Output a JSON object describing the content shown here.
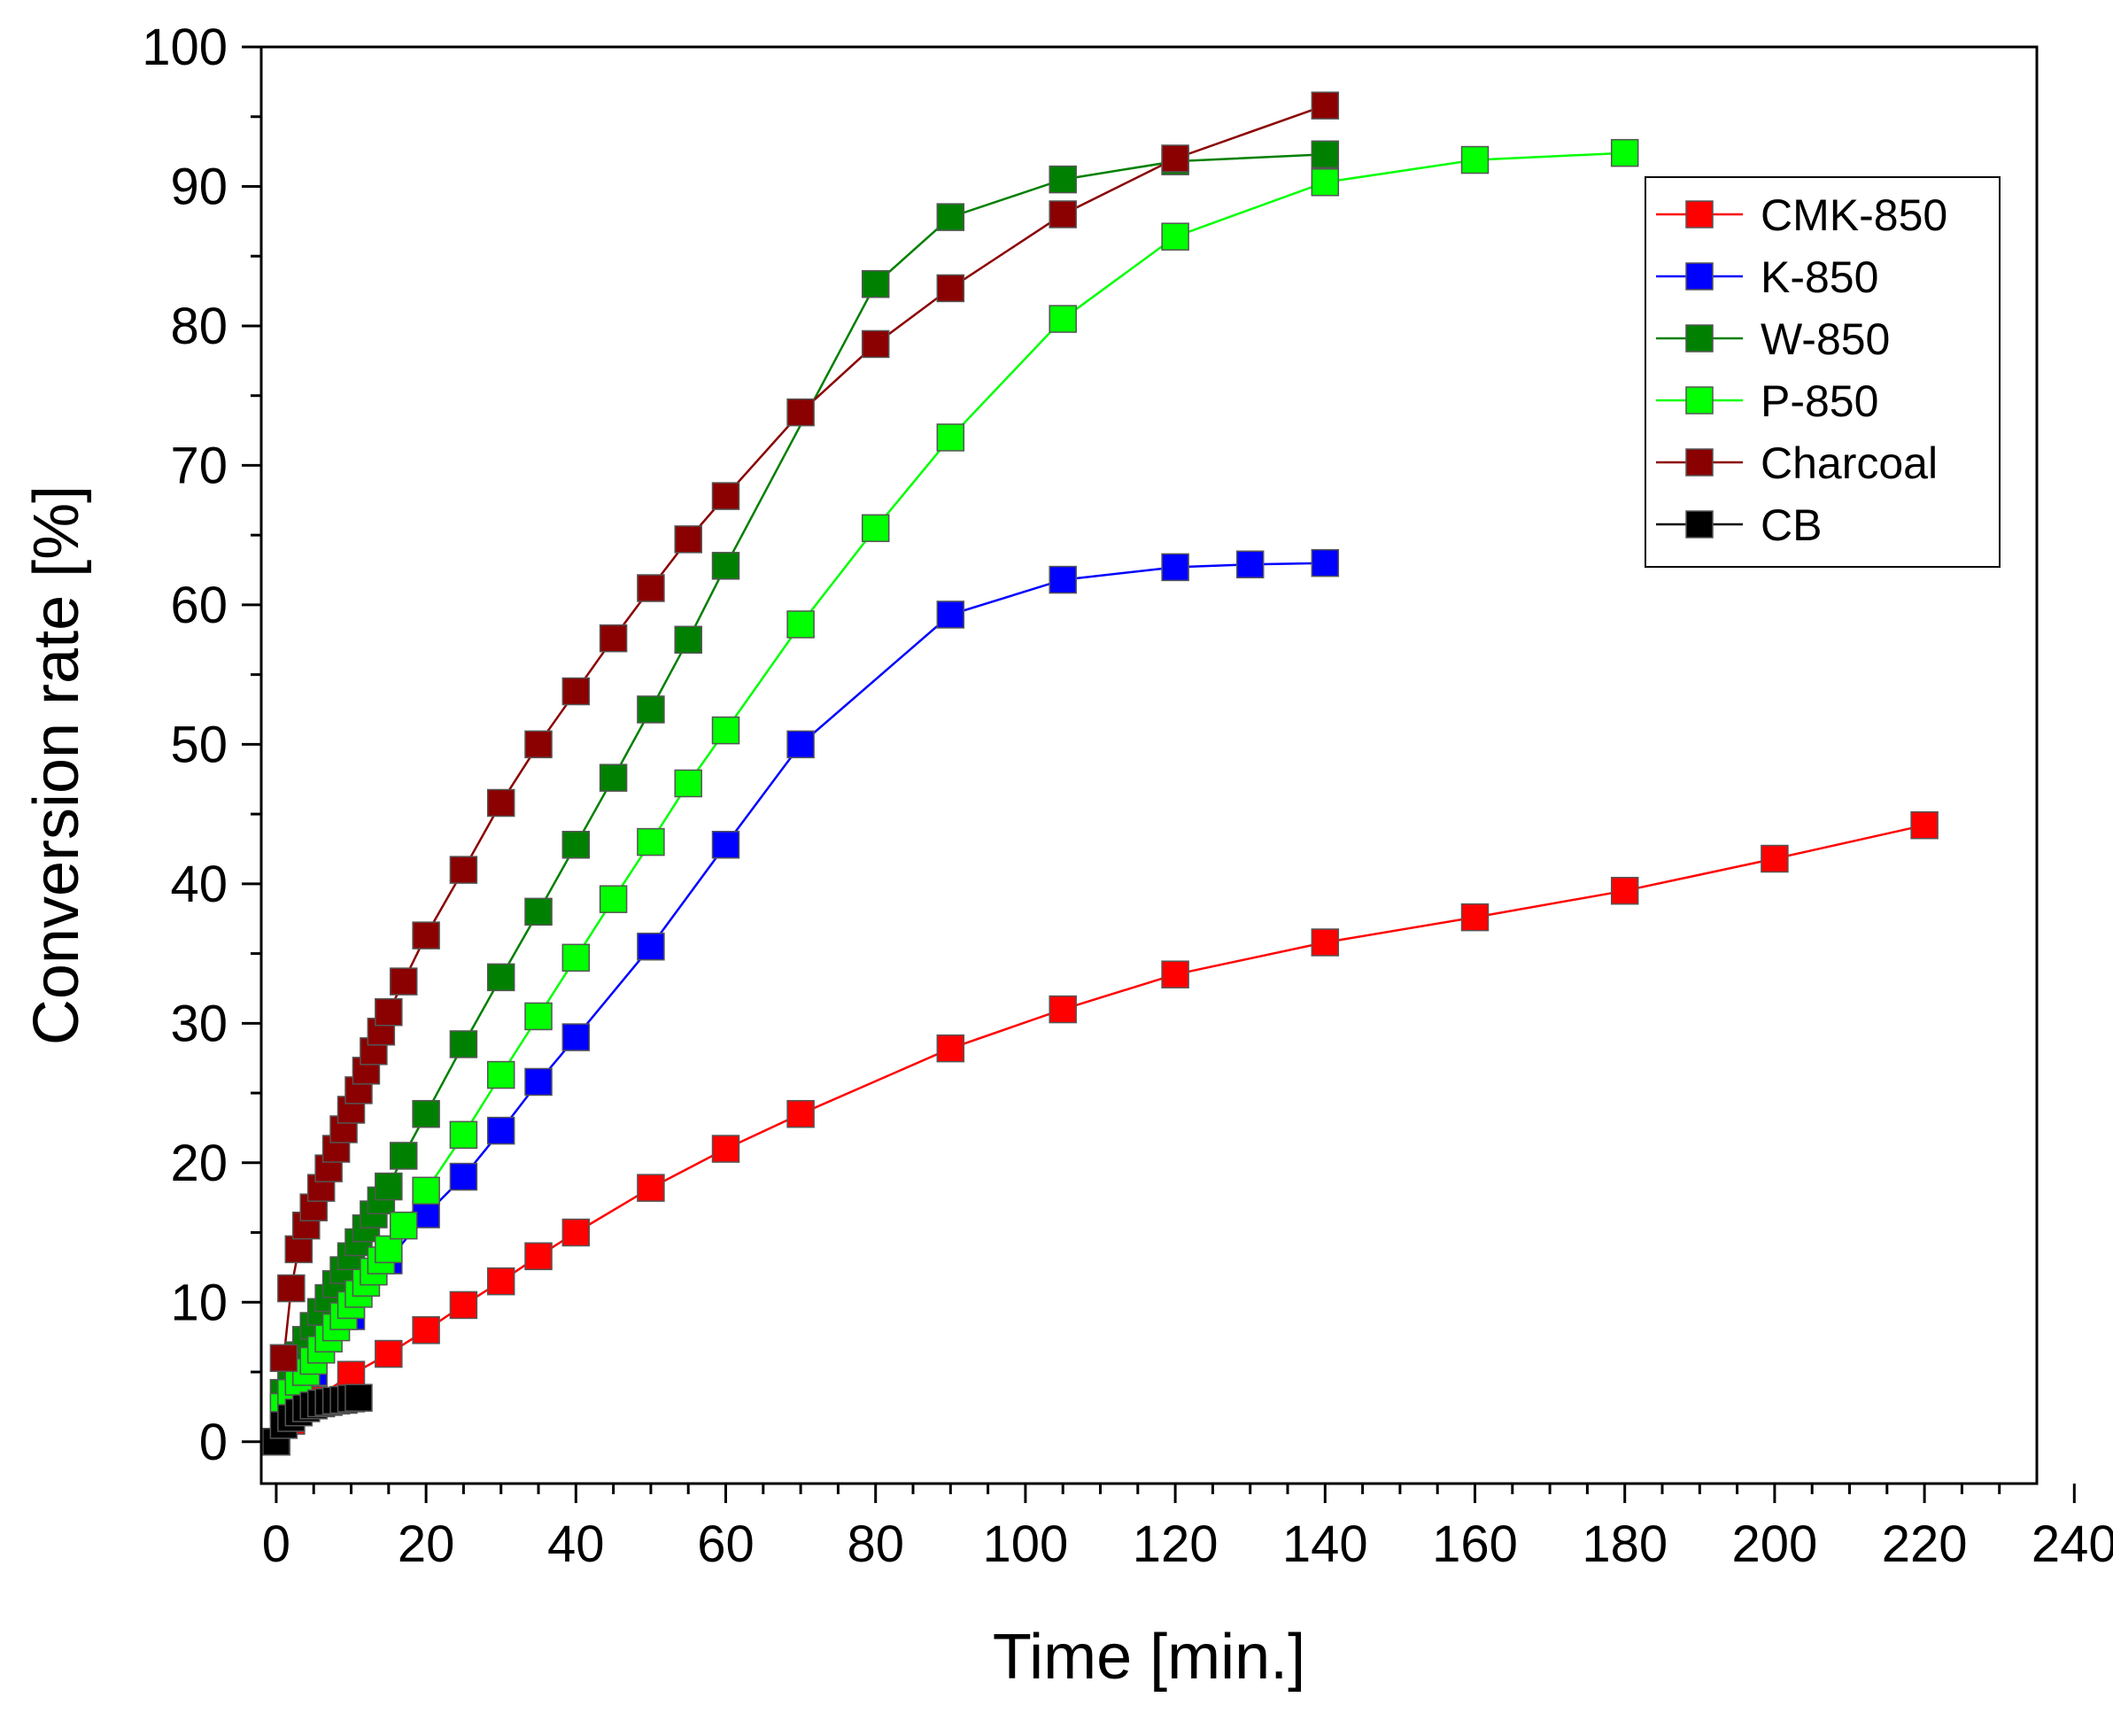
{
  "chart_data": {
    "type": "line",
    "title": "",
    "xlabel": "Time [min.]",
    "ylabel": "Conversion rate [%]",
    "xlim": [
      -2,
      235
    ],
    "ylim": [
      -3,
      100
    ],
    "xticks": [
      0,
      20,
      40,
      60,
      80,
      100,
      120,
      140,
      160,
      180,
      200,
      220,
      240
    ],
    "yticks": [
      0,
      10,
      20,
      30,
      40,
      50,
      60,
      70,
      80,
      90,
      100
    ],
    "grid": false,
    "legend_position": "top-right",
    "series": [
      {
        "name": "CMK-850",
        "color": "#ff0000",
        "x": [
          0,
          2,
          5,
          10,
          15,
          20,
          25,
          30,
          35,
          40,
          50,
          60,
          70,
          90,
          105,
          120,
          140,
          160,
          180,
          200,
          220
        ],
        "y": [
          0,
          1.5,
          3,
          4.8,
          6.3,
          8,
          9.8,
          11.5,
          13.3,
          15,
          18.2,
          21,
          23.5,
          28.2,
          31,
          33.5,
          35.8,
          37.6,
          39.5,
          41.8,
          44.2
        ]
      },
      {
        "name": "K-850",
        "color": "#0000ff",
        "x": [
          0,
          5,
          10,
          15,
          20,
          25,
          30,
          35,
          40,
          50,
          60,
          70,
          90,
          105,
          120,
          130,
          140
        ],
        "y": [
          0,
          5,
          9,
          13,
          16.3,
          19,
          22.3,
          25.8,
          29,
          35.5,
          42.8,
          50,
          59.3,
          61.8,
          62.7,
          62.9,
          63
        ]
      },
      {
        "name": "W-850",
        "color": "#008000",
        "x": [
          0,
          1,
          2,
          3,
          4,
          5,
          6,
          7,
          8,
          9,
          10,
          11,
          12,
          13,
          14,
          15,
          17,
          20,
          25,
          30,
          35,
          40,
          45,
          50,
          55,
          60,
          80,
          90,
          105,
          120,
          140
        ],
        "y": [
          0,
          3.5,
          5,
          6.2,
          7.3,
          8.3,
          9.3,
          10.3,
          11.3,
          12.3,
          13.3,
          14.3,
          15.3,
          16.3,
          17.3,
          18.3,
          20.5,
          23.5,
          28.5,
          33.3,
          38,
          42.8,
          47.6,
          52.5,
          57.5,
          62.8,
          83,
          87.8,
          90.5,
          91.8,
          92.3
        ]
      },
      {
        "name": "P-850",
        "color": "#00ff00",
        "x": [
          0,
          1,
          2,
          3,
          4,
          5,
          6,
          7,
          8,
          9,
          10,
          11,
          12,
          13,
          14,
          15,
          17,
          20,
          25,
          30,
          35,
          40,
          45,
          50,
          55,
          60,
          70,
          80,
          90,
          105,
          120,
          140,
          160,
          180
        ],
        "y": [
          0,
          2.5,
          3.5,
          4.3,
          5,
          5.8,
          6.6,
          7.4,
          8.2,
          9,
          9.8,
          10.6,
          11.4,
          12.2,
          13,
          13.8,
          15.5,
          18,
          22,
          26.3,
          30.5,
          34.7,
          38.9,
          43,
          47.2,
          51,
          58.6,
          65.5,
          72,
          80.5,
          86.4,
          90.3,
          91.9,
          92.4
        ]
      },
      {
        "name": "Charcoal",
        "color": "#8b0000",
        "x": [
          0,
          1,
          2,
          3,
          4,
          5,
          6,
          7,
          8,
          9,
          10,
          11,
          12,
          13,
          14,
          15,
          17,
          20,
          25,
          30,
          35,
          40,
          45,
          50,
          55,
          60,
          70,
          80,
          90,
          105,
          120,
          140
        ],
        "y": [
          0,
          6,
          11,
          13.8,
          15.5,
          16.8,
          18.2,
          19.6,
          21,
          22.4,
          23.8,
          25.2,
          26.6,
          28,
          29.4,
          30.8,
          33,
          36.3,
          41,
          45.8,
          50,
          53.8,
          57.6,
          61.2,
          64.7,
          67.8,
          73.8,
          78.7,
          82.7,
          88,
          92,
          95.8
        ]
      },
      {
        "name": "CB",
        "color": "#000000",
        "x": [
          0,
          1,
          2,
          3,
          4,
          5,
          6,
          7,
          8,
          9,
          10,
          11
        ],
        "y": [
          0,
          1.2,
          1.7,
          2.1,
          2.4,
          2.6,
          2.75,
          2.85,
          2.95,
          3.0,
          3.1,
          3.15
        ]
      }
    ]
  }
}
